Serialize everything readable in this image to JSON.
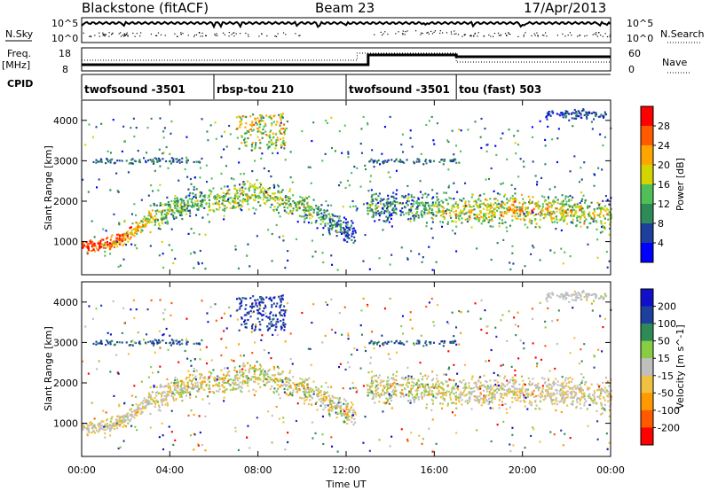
{
  "header": {
    "station": "Blackstone (fitACF)",
    "beam": "Beam 23",
    "date": "17/Apr/2013"
  },
  "strip": {
    "nsky_label": "N.Sky",
    "nsearch_label": "N.Search",
    "freq_label": "Freq.",
    "freq_unit": "[MHz]",
    "nave_label": "Nave",
    "cpid_label": "CPID",
    "nsky_ticks": [
      "10^5",
      "10^0"
    ],
    "nsearch_ticks": [
      "10^5",
      "10^0"
    ],
    "freq_ticks": [
      "18",
      "8"
    ],
    "nave_ticks": [
      "60",
      "0"
    ],
    "cpid_segments": [
      {
        "start": 0,
        "end": 6.0,
        "label": "twofsound -3501"
      },
      {
        "start": 6.0,
        "end": 12.0,
        "label": "rbsp-tou 210"
      },
      {
        "start": 12.0,
        "end": 17.0,
        "label": "twofsound -3501"
      },
      {
        "start": 17.0,
        "end": 24.0,
        "label": "tou (fast) 503"
      }
    ]
  },
  "colors": {
    "power_scale": [
      "#0000ff",
      "#1e3f9e",
      "#2e8b57",
      "#4fbf5a",
      "#d4d400",
      "#ffa500",
      "#ff5a00",
      "#ff0000"
    ],
    "velocity_scale": [
      "#1010c8",
      "#1e3f9e",
      "#2e8b57",
      "#88cc44",
      "#bfbfbf",
      "#f0c040",
      "#ff9900",
      "#ff5a00",
      "#ff0000"
    ]
  },
  "chart_data": [
    {
      "type": "heatmap",
      "title": "Power",
      "ylabel": "Slant Range [km]",
      "xlabel": "Time UT",
      "xlim": [
        0,
        24
      ],
      "ylim": [
        180,
        4500
      ],
      "yticks": [
        "1000",
        "2000",
        "3000",
        "4000"
      ],
      "xticks": [
        "00:00",
        "04:00",
        "08:00",
        "12:00",
        "16:00",
        "20:00",
        "00:00"
      ],
      "colorbar": {
        "label": "Power [dB]",
        "ticks": [
          "4",
          "8",
          "12",
          "16",
          "20",
          "24",
          "28"
        ],
        "range": [
          0,
          30
        ]
      },
      "bands": [
        {
          "t": [
            0.0,
            0.5,
            1.0,
            1.5,
            2.0,
            2.5,
            3.0,
            4.0,
            5.0,
            6.0,
            7.0,
            8.0,
            9.0,
            10.0,
            11.0,
            12.0,
            12.5,
            13.0,
            14.0,
            15.0,
            16.0,
            17.0,
            18.0,
            19.0,
            20.0,
            21.0,
            22.0,
            23.0,
            24.0
          ],
          "range": [
            900,
            900,
            920,
            1000,
            1150,
            1300,
            1550,
            1800,
            1950,
            2000,
            2100,
            2200,
            2000,
            1850,
            1600,
            1250,
            1150,
            1850,
            1900,
            1850,
            1800,
            1750,
            1750,
            1780,
            1800,
            1800,
            1750,
            1700,
            1650
          ],
          "power": [
            26,
            26,
            25,
            24,
            22,
            20,
            17,
            14,
            12,
            16,
            16,
            18,
            16,
            14,
            12,
            8,
            6,
            12,
            10,
            12,
            14,
            18,
            18,
            18,
            20,
            18,
            16,
            16,
            18
          ]
        }
      ]
    },
    {
      "type": "heatmap",
      "title": "Velocity",
      "ylabel": "Slant Range [km]",
      "xlabel": "Time UT",
      "xlim": [
        0,
        24
      ],
      "ylim": [
        180,
        4500
      ],
      "yticks": [
        "1000",
        "2000",
        "3000",
        "4000"
      ],
      "xticks": [
        "00:00",
        "04:00",
        "08:00",
        "12:00",
        "16:00",
        "20:00",
        "00:00"
      ],
      "colorbar": {
        "label": "Velocity [m s^-1]",
        "ticks": [
          "200",
          "100",
          "50",
          "15",
          "-15",
          "-50",
          "-100",
          "-200"
        ],
        "range": [
          -250,
          250
        ]
      }
    }
  ]
}
